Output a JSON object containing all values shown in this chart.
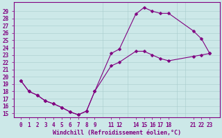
{
  "line1_x": [
    0,
    1,
    2,
    3,
    4,
    5,
    6,
    7,
    8,
    9,
    11,
    12,
    14,
    15,
    16,
    17,
    18,
    21,
    22,
    23
  ],
  "line1_y": [
    19.5,
    18.0,
    17.5,
    16.7,
    16.3,
    15.8,
    15.2,
    14.8,
    15.3,
    18.0,
    23.2,
    23.8,
    28.6,
    29.5,
    29.0,
    28.7,
    28.7,
    26.3,
    25.2,
    23.2
  ],
  "line2_x": [
    0,
    1,
    2,
    3,
    4,
    5,
    6,
    7,
    8,
    9,
    11,
    12,
    14,
    15,
    16,
    17,
    18,
    21,
    22,
    23
  ],
  "line2_y": [
    19.5,
    18.0,
    17.5,
    16.7,
    16.3,
    15.8,
    15.2,
    14.8,
    15.3,
    18.0,
    21.5,
    22.0,
    23.5,
    23.5,
    23.0,
    22.5,
    22.2,
    22.8,
    23.0,
    23.2
  ],
  "all_x_indices": [
    0,
    1,
    2,
    3,
    4,
    5,
    6,
    7,
    8,
    9,
    10,
    11,
    12,
    13,
    14,
    15,
    16,
    17,
    18,
    19,
    20,
    21,
    22,
    23
  ],
  "xtick_positions": [
    0,
    1,
    2,
    3,
    4,
    5,
    6,
    7,
    8,
    9,
    11,
    12,
    14,
    15,
    16,
    17,
    18,
    21,
    22,
    23
  ],
  "xtick_labels": [
    "0",
    "1",
    "2",
    "3",
    "4",
    "5",
    "6",
    "7",
    "8",
    "9",
    "11",
    "12",
    "14",
    "15",
    "16",
    "17",
    "18",
    "21",
    "22",
    "23"
  ],
  "yticks": [
    15,
    16,
    17,
    18,
    19,
    20,
    21,
    22,
    23,
    24,
    25,
    26,
    27,
    28,
    29
  ],
  "ylim": [
    14.5,
    30.2
  ],
  "xlim": [
    -0.8,
    24.2
  ],
  "line_color": "#800080",
  "bg_color": "#cce8e8",
  "grid_color": "#a8cccc",
  "axis_color": "#800080",
  "xlabel": "Windchill (Refroidissement éolien,°C)",
  "marker": "D",
  "marker_size": 2.5,
  "line_width": 0.8,
  "font_size": 6.0,
  "tick_font_size": 5.5
}
